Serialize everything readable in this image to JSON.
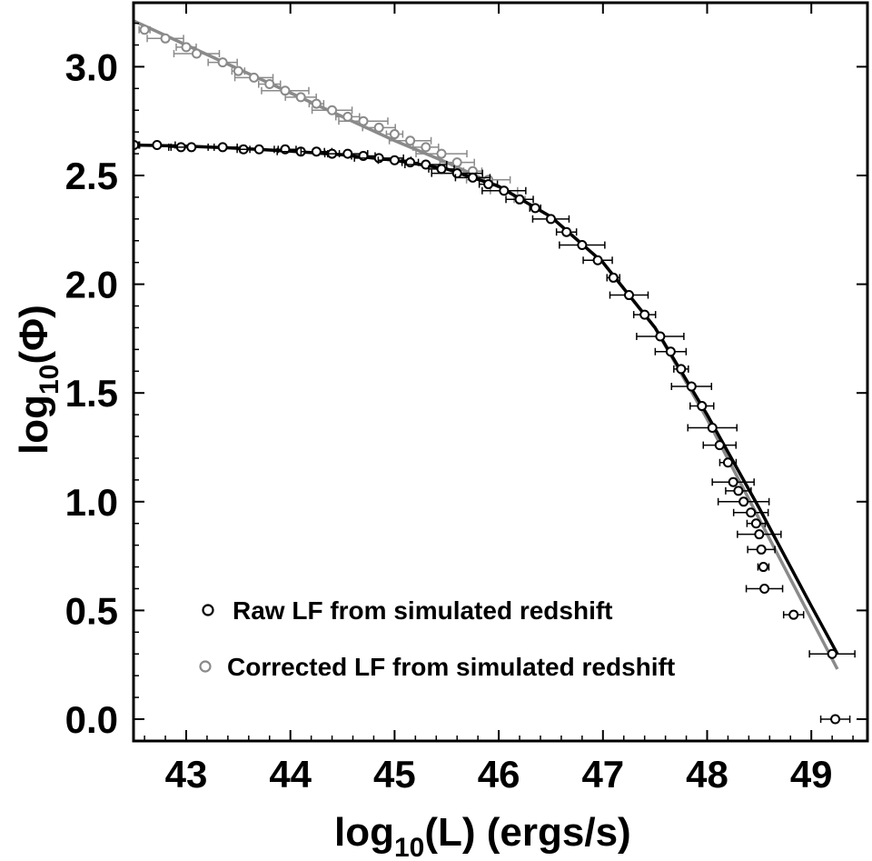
{
  "chart_data": {
    "type": "scatter",
    "title": "",
    "xlabel": {
      "base": "log",
      "sub": "10",
      "rest": "(L) (ergs/s)"
    },
    "ylabel": {
      "base": "log",
      "sub": "10",
      "rest": "(Φ)"
    },
    "xlim": [
      42.5,
      49.5
    ],
    "ylim": [
      -0.1,
      3.3
    ],
    "x_ticks": [
      43,
      44,
      45,
      46,
      47,
      48,
      49
    ],
    "y_ticks": [
      0.0,
      0.5,
      1.0,
      1.5,
      2.0,
      2.5,
      3.0
    ],
    "x_tick_labels": [
      "43",
      "44",
      "45",
      "46",
      "47",
      "48",
      "49"
    ],
    "y_tick_labels": [
      "0.0",
      "0.5",
      "1.0",
      "1.5",
      "2.0",
      "2.5",
      "3.0"
    ],
    "legend_position": "bottom-left",
    "series": [
      {
        "name": "Raw LF from simulated redshift",
        "color": "#000000",
        "points": [
          [
            42.5,
            2.64
          ],
          [
            42.72,
            2.64
          ],
          [
            42.95,
            2.63
          ],
          [
            43.05,
            2.63
          ],
          [
            43.35,
            2.63
          ],
          [
            43.55,
            2.62
          ],
          [
            43.7,
            2.62
          ],
          [
            43.95,
            2.62
          ],
          [
            44.1,
            2.61
          ],
          [
            44.25,
            2.61
          ],
          [
            44.4,
            2.6
          ],
          [
            44.55,
            2.6
          ],
          [
            44.7,
            2.59
          ],
          [
            44.85,
            2.58
          ],
          [
            45.0,
            2.57
          ],
          [
            45.15,
            2.56
          ],
          [
            45.3,
            2.55
          ],
          [
            45.45,
            2.53
          ],
          [
            45.6,
            2.51
          ],
          [
            45.75,
            2.49
          ],
          [
            45.9,
            2.46
          ],
          [
            46.05,
            2.43
          ],
          [
            46.2,
            2.39
          ],
          [
            46.35,
            2.35
          ],
          [
            46.5,
            2.3
          ],
          [
            46.65,
            2.24
          ],
          [
            46.8,
            2.18
          ],
          [
            46.95,
            2.11
          ],
          [
            47.1,
            2.03
          ],
          [
            47.25,
            1.95
          ],
          [
            47.4,
            1.86
          ],
          [
            47.55,
            1.76
          ],
          [
            47.65,
            1.69
          ],
          [
            47.75,
            1.61
          ],
          [
            47.85,
            1.53
          ],
          [
            47.95,
            1.44
          ],
          [
            48.05,
            1.34
          ],
          [
            48.12,
            1.26
          ],
          [
            48.2,
            1.18
          ],
          [
            48.25,
            1.09
          ],
          [
            48.3,
            1.05
          ],
          [
            48.35,
            1.0
          ],
          [
            48.42,
            0.95
          ],
          [
            48.47,
            0.9
          ],
          [
            48.5,
            0.85
          ],
          [
            48.52,
            0.78
          ],
          [
            48.54,
            0.7
          ],
          [
            48.55,
            0.6
          ],
          [
            48.83,
            0.48
          ],
          [
            49.2,
            0.3
          ],
          [
            49.23,
            0.0
          ]
        ],
        "fit": [
          [
            42.5,
            2.64
          ],
          [
            43.0,
            2.635
          ],
          [
            43.5,
            2.625
          ],
          [
            44.0,
            2.612
          ],
          [
            44.5,
            2.595
          ],
          [
            45.0,
            2.57
          ],
          [
            45.5,
            2.53
          ],
          [
            46.0,
            2.45
          ],
          [
            46.5,
            2.31
          ],
          [
            47.0,
            2.1
          ],
          [
            47.5,
            1.8
          ],
          [
            48.0,
            1.4
          ],
          [
            48.5,
            0.97
          ],
          [
            49.0,
            0.52
          ],
          [
            49.25,
            0.3
          ]
        ]
      },
      {
        "name": "Corrected LF from simulated redshift",
        "color": "#8a8a8a",
        "points": [
          [
            42.6,
            3.17
          ],
          [
            42.8,
            3.13
          ],
          [
            43.0,
            3.09
          ],
          [
            43.1,
            3.06
          ],
          [
            43.35,
            3.02
          ],
          [
            43.5,
            2.98
          ],
          [
            43.65,
            2.95
          ],
          [
            43.8,
            2.92
          ],
          [
            43.95,
            2.89
          ],
          [
            44.1,
            2.86
          ],
          [
            44.25,
            2.83
          ],
          [
            44.4,
            2.8
          ],
          [
            44.55,
            2.77
          ],
          [
            44.7,
            2.75
          ],
          [
            44.85,
            2.72
          ],
          [
            45.0,
            2.69
          ],
          [
            45.15,
            2.66
          ],
          [
            45.3,
            2.63
          ],
          [
            45.45,
            2.6
          ],
          [
            45.6,
            2.56
          ],
          [
            45.75,
            2.52
          ],
          [
            45.9,
            2.48
          ],
          [
            46.05,
            2.43
          ],
          [
            46.2,
            2.39
          ]
        ],
        "fit": [
          [
            42.5,
            3.21
          ],
          [
            43.0,
            3.1
          ],
          [
            43.5,
            2.99
          ],
          [
            44.0,
            2.88
          ],
          [
            44.5,
            2.77
          ],
          [
            45.0,
            2.66
          ],
          [
            45.5,
            2.56
          ],
          [
            46.0,
            2.45
          ],
          [
            46.5,
            2.31
          ],
          [
            47.0,
            2.1
          ],
          [
            47.5,
            1.8
          ],
          [
            48.0,
            1.38
          ],
          [
            48.5,
            0.92
          ],
          [
            49.0,
            0.46
          ],
          [
            49.25,
            0.23
          ]
        ]
      }
    ]
  }
}
